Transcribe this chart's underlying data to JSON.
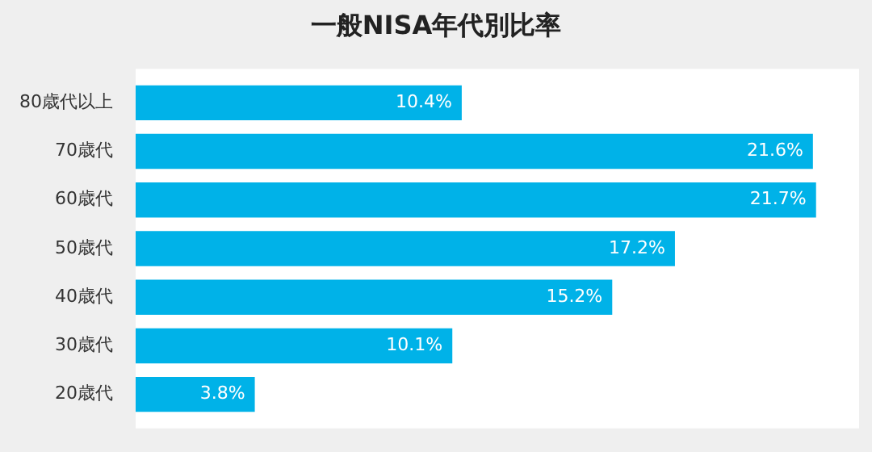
{
  "chart_data": {
    "type": "bar",
    "orientation": "horizontal",
    "title": "一般NISA年代別比率",
    "categories": [
      "80歳代以上",
      "70歳代",
      "60歳代",
      "50歳代",
      "40歳代",
      "30歳代",
      "20歳代"
    ],
    "values": [
      10.4,
      21.6,
      21.7,
      17.2,
      15.2,
      10.1,
      3.8
    ],
    "value_labels": [
      "10.4%",
      "21.6%",
      "21.7%",
      "17.2%",
      "15.2%",
      "10.1%",
      "3.8%"
    ],
    "color": "#00b2e8",
    "tick_labels": "y"
  }
}
